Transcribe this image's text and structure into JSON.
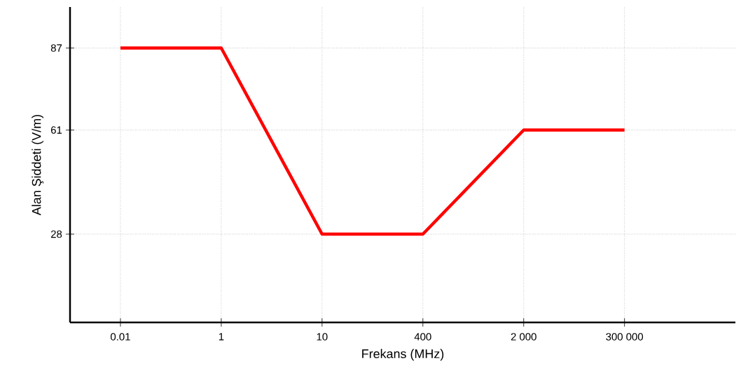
{
  "chart_data": {
    "type": "line",
    "xlabel": "Frekans (MHz)",
    "ylabel": "Alan Şiddeti (V/m)",
    "categories": [
      "0.01",
      "1",
      "10",
      "400",
      "2 000",
      "300 000"
    ],
    "series": [
      {
        "color": "#ff0000",
        "values": [
          87,
          87,
          28,
          28,
          61,
          61
        ]
      }
    ],
    "ylim": [
      0,
      100
    ],
    "yticks": [
      28,
      61,
      87
    ],
    "grid": true,
    "marker": "none",
    "line_style": "solid"
  }
}
